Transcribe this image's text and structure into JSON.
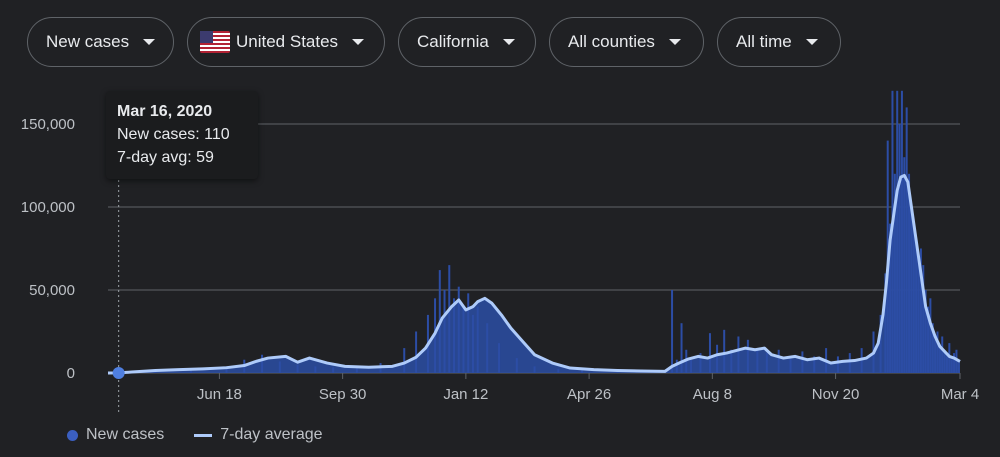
{
  "filters": {
    "metric": "New cases",
    "country": "United States",
    "region": "California",
    "county": "All counties",
    "period": "All time"
  },
  "tooltip": {
    "date": "Mar 16, 2020",
    "new_cases": "New cases: 110",
    "avg": "7-day avg: 59"
  },
  "legend": {
    "bars": "New cases",
    "line": "7-day average"
  },
  "colors": {
    "bar": "#2c4da5",
    "line": "#aecbfa",
    "grid": "#5f6368",
    "axis_text": "#bdc1c6",
    "marker": "#4f7fe0"
  },
  "chart_data": {
    "type": "bar",
    "title": "",
    "xlabel": "",
    "ylabel": "New cases",
    "ylim": [
      0,
      170000
    ],
    "yticks": [
      0,
      50000,
      100000,
      150000
    ],
    "ytick_labels": [
      "0",
      "50,000",
      "100,000",
      "150,000"
    ],
    "x_start_day": 0,
    "x_end_day": 719,
    "xtick_labels": [
      {
        "day": 94,
        "label": "Jun 18"
      },
      {
        "day": 198,
        "label": "Sep 30"
      },
      {
        "day": 302,
        "label": "Jan 12"
      },
      {
        "day": 406,
        "label": "Apr 26"
      },
      {
        "day": 510,
        "label": "Aug 8"
      },
      {
        "day": 614,
        "label": "Nov 20"
      },
      {
        "day": 719,
        "label": "Mar 4"
      }
    ],
    "selected_day": 9,
    "series": [
      {
        "name": "New cases",
        "kind": "bar",
        "days": [
          9,
          40,
          70,
          100,
          115,
          130,
          145,
          160,
          175,
          190,
          210,
          230,
          250,
          260,
          270,
          276,
          280,
          284,
          288,
          292,
          296,
          300,
          304,
          308,
          312,
          320,
          330,
          345,
          360,
          380,
          400,
          430,
          460,
          470,
          476,
          480,
          484,
          488,
          492,
          500,
          508,
          514,
          520,
          526,
          532,
          540,
          548,
          556,
          566,
          576,
          586,
          596,
          606,
          616,
          626,
          636,
          646,
          652,
          656,
          658,
          660,
          662,
          664,
          666,
          668,
          670,
          672,
          674,
          676,
          678,
          680,
          682,
          684,
          686,
          688,
          690,
          692,
          694,
          696,
          698,
          700,
          702,
          704,
          706,
          708,
          710,
          712,
          714,
          716,
          718
        ],
        "values": [
          110,
          1200,
          2500,
          4000,
          8000,
          11000,
          7000,
          5000,
          4000,
          3500,
          4000,
          6000,
          15000,
          25000,
          35000,
          45000,
          62000,
          50000,
          65000,
          45000,
          52000,
          40000,
          48000,
          35000,
          40000,
          30000,
          18000,
          9000,
          4000,
          2500,
          2000,
          1500,
          1200,
          1500,
          50000,
          8000,
          30000,
          14000,
          8000,
          12000,
          24000,
          17000,
          26000,
          14000,
          22000,
          20000,
          14000,
          12000,
          14000,
          10000,
          13000,
          10000,
          15000,
          10000,
          12000,
          15000,
          25000,
          35000,
          60000,
          140000,
          90000,
          170000,
          120000,
          170000,
          150000,
          170000,
          130000,
          160000,
          120000,
          100000,
          90000,
          80000,
          70000,
          75000,
          65000,
          50000,
          40000,
          45000,
          30000,
          20000,
          25000,
          15000,
          22000,
          12000,
          10000,
          18000,
          8000,
          12000,
          14000,
          6000
        ]
      },
      {
        "name": "7-day average",
        "kind": "line",
        "days": [
          0,
          9,
          20,
          40,
          60,
          80,
          100,
          115,
          125,
          135,
          150,
          160,
          170,
          185,
          200,
          220,
          240,
          250,
          260,
          268,
          276,
          282,
          290,
          296,
          302,
          308,
          312,
          318,
          324,
          332,
          340,
          350,
          360,
          375,
          390,
          410,
          430,
          450,
          470,
          476,
          482,
          490,
          498,
          506,
          514,
          522,
          530,
          538,
          546,
          554,
          560,
          570,
          580,
          590,
          600,
          610,
          620,
          630,
          640,
          646,
          650,
          654,
          657,
          660,
          663,
          666,
          669,
          672,
          675,
          678,
          682,
          686,
          690,
          694,
          698,
          702,
          706,
          710,
          714,
          719
        ],
        "values": [
          0,
          59,
          600,
          1500,
          2000,
          2500,
          3200,
          4500,
          7000,
          9000,
          10000,
          6500,
          9000,
          6000,
          4000,
          3500,
          4000,
          6000,
          9500,
          15000,
          24000,
          33000,
          40000,
          44000,
          38000,
          40000,
          43000,
          45000,
          42000,
          35000,
          27000,
          19000,
          11000,
          6000,
          3000,
          2000,
          1500,
          1200,
          1000,
          4000,
          6000,
          8500,
          10000,
          9000,
          11000,
          12000,
          13500,
          15000,
          14000,
          15000,
          11000,
          9000,
          10000,
          8000,
          9000,
          6000,
          7000,
          7500,
          9000,
          12000,
          18000,
          35000,
          55000,
          80000,
          95000,
          110000,
          118000,
          119000,
          115000,
          100000,
          80000,
          60000,
          40000,
          30000,
          22000,
          16000,
          13000,
          10000,
          9000,
          7000
        ]
      }
    ]
  }
}
